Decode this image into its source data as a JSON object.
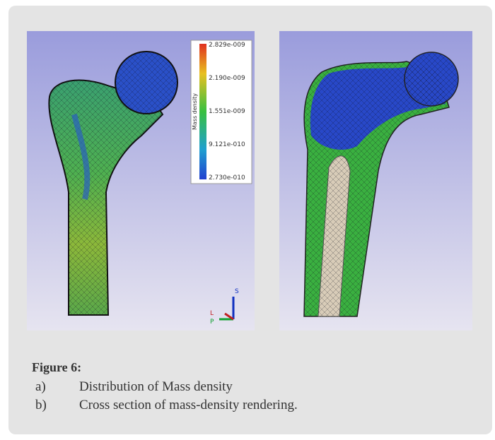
{
  "figure": {
    "legend": {
      "title": "Mass density",
      "labels": [
        "2.829e-009",
        "2.190e-009",
        "1.551e-009",
        "9.121e-010",
        "2.730e-010"
      ]
    },
    "triad": [
      "S",
      "L",
      "P"
    ],
    "caption": {
      "label": "Figure 6:",
      "items": [
        {
          "marker": "a)",
          "text": "Distribution of Mass density"
        },
        {
          "marker": "b)",
          "text": "Cross section of mass-density rendering."
        }
      ]
    }
  }
}
